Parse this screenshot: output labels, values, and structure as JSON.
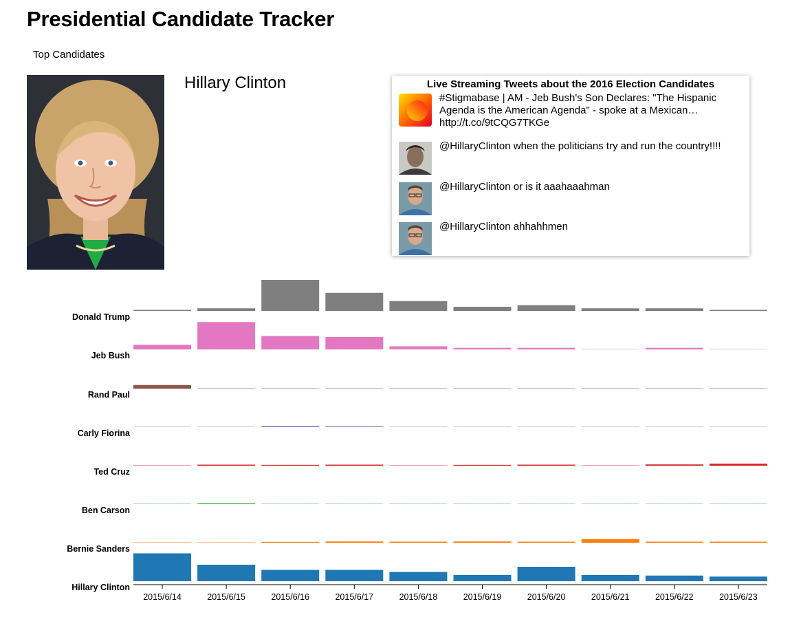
{
  "header": {
    "title": "Presidential Candidate Tracker"
  },
  "nav": {
    "top_candidates": "Top Candidates"
  },
  "selected": {
    "name": "Hillary Clinton"
  },
  "feed": {
    "title": "Live Streaming Tweets about the 2016 Election Candidates",
    "tweets": [
      {
        "text": "#Stigmabase | AM - Jeb Bush's Son Declares: \"The Hispanic Agenda is the American Agenda\"  - spoke at a Mexican… http://t.co/9tCQG7TKGe",
        "avatar": "gradient-logo-avatar"
      },
      {
        "text": "@HillaryClinton when the politicians try and run the country!!!!",
        "avatar": "man-portrait-avatar"
      },
      {
        "text": "@HillaryClinton or is it aaahaaahman",
        "avatar": "man-portrait-avatar"
      },
      {
        "text": "@HillaryClinton ahhahhmen",
        "avatar": "man-portrait-avatar"
      }
    ]
  },
  "chart_data": {
    "type": "bar",
    "categories": [
      "2015/6/14",
      "2015/6/15",
      "2015/6/16",
      "2015/6/17",
      "2015/6/18",
      "2015/6/19",
      "2015/6/20",
      "2015/6/21",
      "2015/6/22",
      "2015/6/23"
    ],
    "series": [
      {
        "name": "Donald Trump",
        "color": "#7f7f7f",
        "values": [
          1,
          2.5,
          30,
          17.5,
          9.5,
          4,
          5.5,
          2.5,
          2.5,
          1
        ]
      },
      {
        "name": "Jeb Bush",
        "color": "#e377c2",
        "values": [
          4.5,
          26.5,
          13,
          12,
          3,
          1.5,
          1.5,
          0.5,
          1.5,
          0.5
        ]
      },
      {
        "name": "Rand Paul",
        "color": "#8c564b",
        "values": [
          3.5,
          0.5,
          0,
          0.5,
          0.2,
          0.2,
          0.5,
          0.5,
          0.1,
          0.2
        ]
      },
      {
        "name": "Carly Fiorina",
        "color": "#9467bd",
        "values": [
          0.3,
          0.5,
          1,
          0.7,
          0.2,
          0.3,
          0.2,
          0.1,
          0.1,
          0.1
        ]
      },
      {
        "name": "Ted Cruz",
        "color": "#d62728",
        "values": [
          0.5,
          1,
          0.8,
          1,
          0.3,
          0.8,
          1,
          0.5,
          1.2,
          2
        ]
      },
      {
        "name": "Ben Carson",
        "color": "#2ca02c",
        "values": [
          0.1,
          0.8,
          0,
          0.2,
          0.3,
          0.2,
          0.2,
          0.3,
          0.1,
          0.4
        ]
      },
      {
        "name": "Bernie Sanders",
        "color": "#ff7f0e",
        "values": [
          0.5,
          0.4,
          0.8,
          1.2,
          1,
          1.2,
          1,
          3.5,
          1,
          1
        ]
      },
      {
        "name": "Hillary Clinton",
        "color": "#1f77b4",
        "values": [
          27,
          16,
          11,
          11,
          9,
          6,
          14,
          6,
          5.5,
          4.5
        ]
      }
    ]
  }
}
